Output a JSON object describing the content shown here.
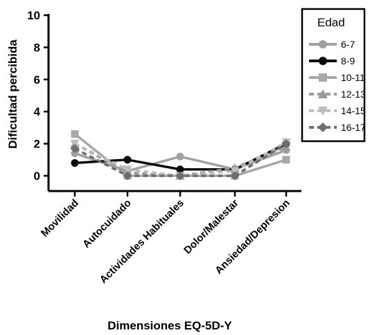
{
  "chart_data": {
    "type": "line",
    "xlabel": "Dimensiones EQ-5D-Y",
    "ylabel": "Dificultad percibida",
    "ylim": [
      0,
      10
    ],
    "yticks": [
      "0",
      "2",
      "4",
      "6",
      "8",
      "10"
    ],
    "categories": [
      "Movilidad",
      "Autocuidado",
      "Actividades Habituales",
      "Dolor/Malestar",
      "Ansiedad/Depresion"
    ],
    "legend": {
      "title": "Edad",
      "placement": "top-right"
    },
    "grid": false,
    "series": [
      {
        "name": "6-7",
        "values": [
          1.4,
          0.3,
          1.2,
          0.4,
          1.6
        ],
        "color": "#a0a0a0",
        "dash": "solid",
        "marker": "circle"
      },
      {
        "name": "8-9",
        "values": [
          0.8,
          1.0,
          0.4,
          0.4,
          2.0
        ],
        "color": "#0a0a0a",
        "dash": "solid",
        "marker": "circle"
      },
      {
        "name": "10-11",
        "values": [
          2.6,
          0.0,
          0.0,
          0.0,
          1.0
        ],
        "color": "#a8a8a8",
        "dash": "solid",
        "marker": "square"
      },
      {
        "name": "12-13",
        "values": [
          2.0,
          0.2,
          0.0,
          0.5,
          1.8
        ],
        "color": "#9a9a9a",
        "dash": "dashed",
        "marker": "triangle-up"
      },
      {
        "name": "14-15",
        "values": [
          2.0,
          0.4,
          0.0,
          0.3,
          2.1
        ],
        "color": "#bdbdbd",
        "dash": "dashed",
        "marker": "triangle-down"
      },
      {
        "name": "16-17",
        "values": [
          1.7,
          0.0,
          0.0,
          0.0,
          2.0
        ],
        "color": "#6e6e6e",
        "dash": "dashed",
        "marker": "diamond"
      }
    ]
  }
}
